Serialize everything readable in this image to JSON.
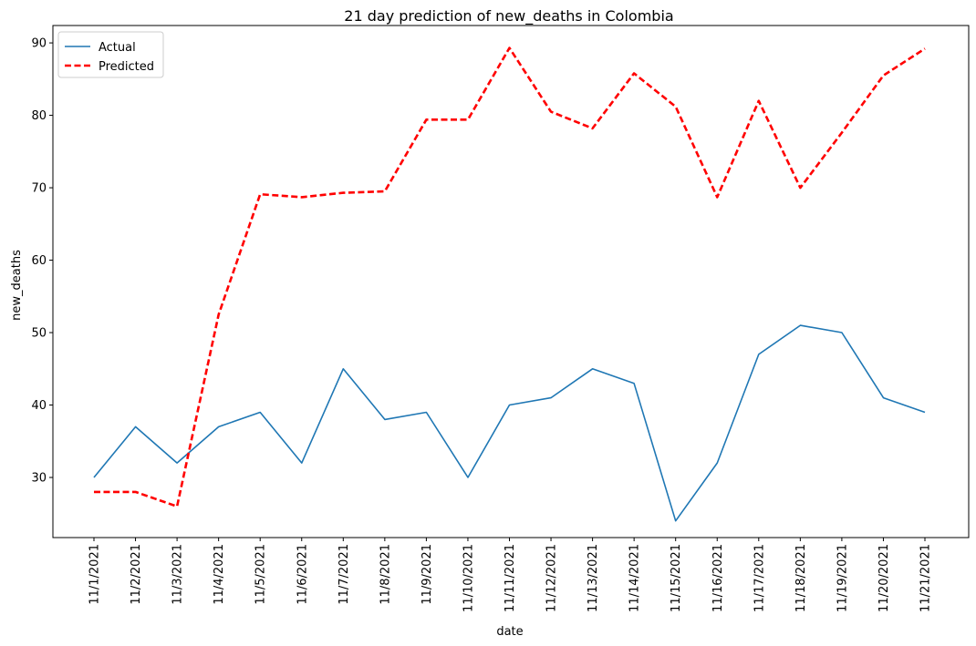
{
  "chart_data": {
    "type": "line",
    "title": "21 day prediction of new_deaths in Colombia",
    "xlabel": "date",
    "ylabel": "new_deaths",
    "x": [
      "11/1/2021",
      "11/2/2021",
      "11/3/2021",
      "11/4/2021",
      "11/5/2021",
      "11/6/2021",
      "11/7/2021",
      "11/8/2021",
      "11/9/2021",
      "11/10/2021",
      "11/11/2021",
      "11/12/2021",
      "11/13/2021",
      "11/14/2021",
      "11/15/2021",
      "11/16/2021",
      "11/17/2021",
      "11/18/2021",
      "11/19/2021",
      "11/20/2021",
      "11/21/2021"
    ],
    "yticks": [
      30,
      40,
      50,
      60,
      70,
      80,
      90
    ],
    "ylim": [
      21.7,
      92.4
    ],
    "grid": false,
    "legend_position": "top-left",
    "series": [
      {
        "name": "Actual",
        "color": "#1f77b4",
        "style": "solid",
        "values": [
          30,
          37,
          32,
          37,
          39,
          32,
          45,
          38,
          39,
          30,
          40,
          41,
          45,
          43,
          24,
          32,
          47,
          51,
          50,
          41,
          39
        ]
      },
      {
        "name": "Predicted",
        "color": "#ff0000",
        "style": "dashed",
        "values": [
          28,
          28,
          26,
          52.5,
          69.1,
          68.7,
          69.3,
          69.5,
          79.4,
          79.4,
          89.3,
          80.5,
          78.2,
          85.8,
          81.2,
          68.7,
          82,
          70,
          77.6,
          85.5,
          89.2
        ]
      }
    ]
  }
}
